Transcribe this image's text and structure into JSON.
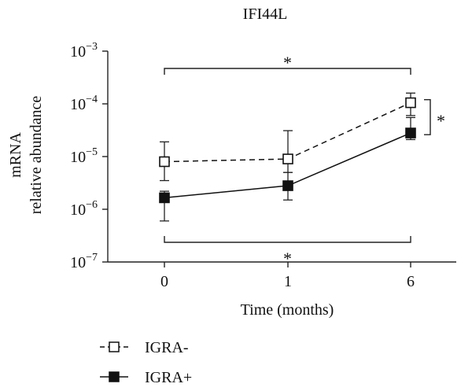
{
  "chart_data": {
    "type": "line",
    "title": "IFI44L",
    "xlabel": "Time (months)",
    "ylabel_lines": [
      "mRNA",
      "relative abundance"
    ],
    "x": [
      "0",
      "1",
      "6"
    ],
    "yscale": "log",
    "ylim": [
      1e-07,
      0.001
    ],
    "y_ticks": [
      {
        "base": "10",
        "exp": "−3"
      },
      {
        "base": "10",
        "exp": "−4"
      },
      {
        "base": "10",
        "exp": "−5"
      },
      {
        "base": "10",
        "exp": "−6"
      },
      {
        "base": "10",
        "exp": "−7"
      }
    ],
    "series": [
      {
        "name": "IGRA-",
        "marker": "open-square",
        "linestyle": "dashed",
        "values": [
          8e-06,
          9e-06,
          0.000105
        ],
        "err_low": [
          3.5e-06,
          5e-06,
          6e-05
        ],
        "err_high": [
          1.9e-05,
          3.1e-05,
          0.00016
        ]
      },
      {
        "name": "IGRA+",
        "marker": "filled-square",
        "linestyle": "solid",
        "values": [
          1.65e-06,
          2.8e-06,
          2.8e-05
        ],
        "err_low": [
          6e-07,
          1.5e-06,
          2.1e-05
        ],
        "err_high": [
          2.2e-06,
          5e-06,
          5.5e-05
        ]
      }
    ],
    "annotations": [
      {
        "text": "*",
        "type": "bracket-top",
        "from": "0",
        "to": "6"
      },
      {
        "text": "*",
        "type": "bracket-bottom",
        "from": "0",
        "to": "6"
      },
      {
        "text": "*",
        "type": "vertical-bracket-right",
        "at": "6",
        "ymin": 2.6e-05,
        "ymax": 0.00012
      }
    ],
    "legend": {
      "placement": "bottom-left",
      "entries": [
        "IGRA-",
        "IGRA+"
      ]
    }
  }
}
